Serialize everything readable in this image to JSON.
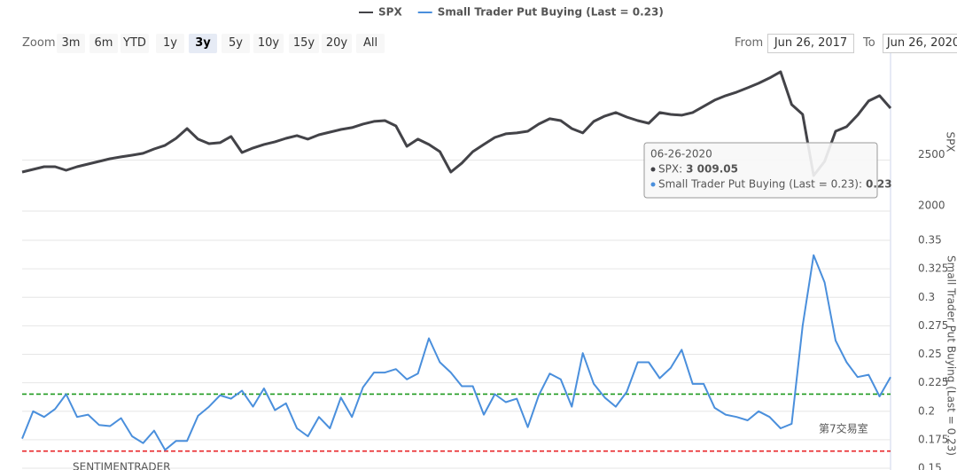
{
  "chart_data": [
    {
      "type": "line",
      "series": [
        {
          "name": "SPX",
          "color": "#434348",
          "values": [
            2383,
            2409,
            2435,
            2435,
            2400,
            2435,
            2461,
            2487,
            2513,
            2531,
            2548,
            2566,
            2609,
            2644,
            2713,
            2809,
            2705,
            2661,
            2670,
            2731,
            2574,
            2618,
            2653,
            2679,
            2713,
            2740,
            2705,
            2748,
            2774,
            2800,
            2818,
            2853,
            2879,
            2887,
            2835,
            2635,
            2705,
            2653,
            2583,
            2383,
            2470,
            2583,
            2653,
            2722,
            2757,
            2766,
            2783,
            2853,
            2905,
            2887,
            2809,
            2766,
            2879,
            2931,
            2966,
            2922,
            2887,
            2861,
            2966,
            2948,
            2940,
            2966,
            3027,
            3088,
            3131,
            3166,
            3209,
            3253,
            3305,
            3366,
            3044,
            2948,
            2348,
            2487,
            2783,
            2827,
            2940,
            3079,
            3131,
            3009.05
          ]
        }
      ],
      "ylim": [
        2000,
        3500
      ],
      "yticks": [
        2000,
        2500
      ],
      "axis_title": "SPX"
    },
    {
      "type": "line",
      "series": [
        {
          "name": "Small Trader Put Buying (Last = 0.23)",
          "color": "#4a8fdc",
          "values": [
            0.176,
            0.2,
            0.195,
            0.202,
            0.215,
            0.195,
            0.197,
            0.188,
            0.187,
            0.194,
            0.178,
            0.172,
            0.183,
            0.166,
            0.174,
            0.174,
            0.196,
            0.204,
            0.214,
            0.211,
            0.218,
            0.204,
            0.22,
            0.201,
            0.207,
            0.185,
            0.178,
            0.195,
            0.185,
            0.212,
            0.195,
            0.221,
            0.234,
            0.234,
            0.237,
            0.228,
            0.233,
            0.264,
            0.243,
            0.234,
            0.222,
            0.222,
            0.197,
            0.215,
            0.208,
            0.211,
            0.186,
            0.214,
            0.233,
            0.228,
            0.204,
            0.251,
            0.224,
            0.212,
            0.204,
            0.217,
            0.243,
            0.243,
            0.229,
            0.238,
            0.254,
            0.224,
            0.224,
            0.203,
            0.197,
            0.195,
            0.192,
            0.2,
            0.195,
            0.185,
            0.189,
            0.275,
            0.337,
            0.313,
            0.262,
            0.243,
            0.23,
            0.232,
            0.213,
            0.23
          ]
        }
      ],
      "ylim": [
        0.15,
        0.35
      ],
      "yticks": [
        0.15,
        0.175,
        0.2,
        0.225,
        0.25,
        0.275,
        0.3,
        0.325,
        0.35
      ],
      "hlines": [
        {
          "value": 0.215,
          "color": "#1f9a1f"
        },
        {
          "value": 0.165,
          "color": "#e8262a"
        }
      ],
      "grid": true
    }
  ],
  "range_selector": {
    "zoom_label": "Zoom",
    "buttons": [
      "3m",
      "6m",
      "YTD",
      "1y",
      "3y",
      "5y",
      "10y",
      "15y",
      "20y",
      "All"
    ],
    "selected": 4,
    "from_label": "From",
    "from": "Jun 26, 2017",
    "to_label": "To",
    "to": "Jun 26, 2020"
  },
  "tooltip": {
    "date": "06-26-2020",
    "rows": [
      {
        "label": "SPX:",
        "value": "3 009.05"
      },
      {
        "label": "Small Trader Put Buying (Last = 0.23):",
        "value": "0.23"
      }
    ]
  },
  "watermarks": [
    "SENTIMENTRADER",
    "第7交易室"
  ]
}
